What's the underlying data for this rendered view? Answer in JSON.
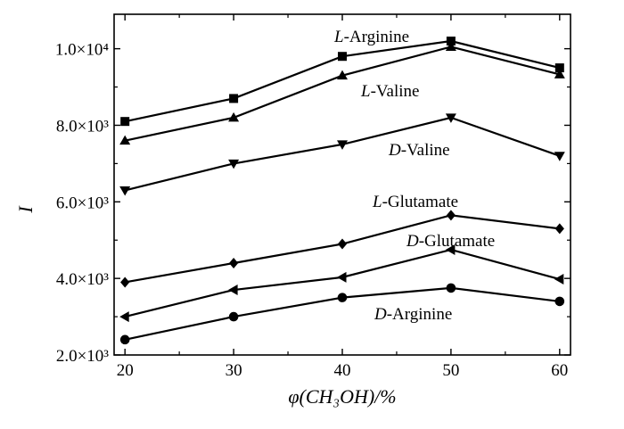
{
  "chart_data": {
    "type": "line",
    "xlabel": "φ(CH₃OH)/%",
    "ylabel": "I",
    "x": [
      20,
      30,
      40,
      50,
      60
    ],
    "xlim": [
      19,
      61
    ],
    "ylim": [
      2000,
      10900
    ],
    "x_ticks": [
      20,
      30,
      40,
      50,
      60
    ],
    "y_ticks": [
      {
        "value": 2000,
        "label": "2.0×10³"
      },
      {
        "value": 4000,
        "label": "4.0×10³"
      },
      {
        "value": 6000,
        "label": "6.0×10³"
      },
      {
        "value": 8000,
        "label": "8.0×10³"
      },
      {
        "value": 10000,
        "label": "1.0×10⁴"
      }
    ],
    "grid": false,
    "legend": "none",
    "series": [
      {
        "name": "L-Arginine",
        "prefix": "L",
        "suffix": "-Arginine",
        "marker": "square",
        "values": [
          8100,
          8700,
          9800,
          10200,
          9500
        ]
      },
      {
        "name": "L-Valine",
        "prefix": "L",
        "suffix": "-Valine",
        "marker": "triangle-up",
        "values": [
          7600,
          8200,
          9300,
          10050,
          9330
        ]
      },
      {
        "name": "D-Valine",
        "prefix": "D",
        "suffix": "-Valine",
        "marker": "triangle-down",
        "values": [
          6300,
          7000,
          7500,
          8200,
          7200
        ]
      },
      {
        "name": "L-Glutamate",
        "prefix": "L",
        "suffix": "-Glutamate",
        "marker": "diamond",
        "values": [
          3900,
          4400,
          4900,
          5650,
          5300
        ]
      },
      {
        "name": "D-Glutamate",
        "prefix": "D",
        "suffix": "-Glutamate",
        "marker": "triangle-left",
        "values": [
          3000,
          3700,
          4030,
          4750,
          3980
        ]
      },
      {
        "name": "D-Arginine",
        "prefix": "D",
        "suffix": "-Arginine",
        "marker": "circle",
        "values": [
          2400,
          3000,
          3500,
          3750,
          3400
        ]
      }
    ]
  }
}
